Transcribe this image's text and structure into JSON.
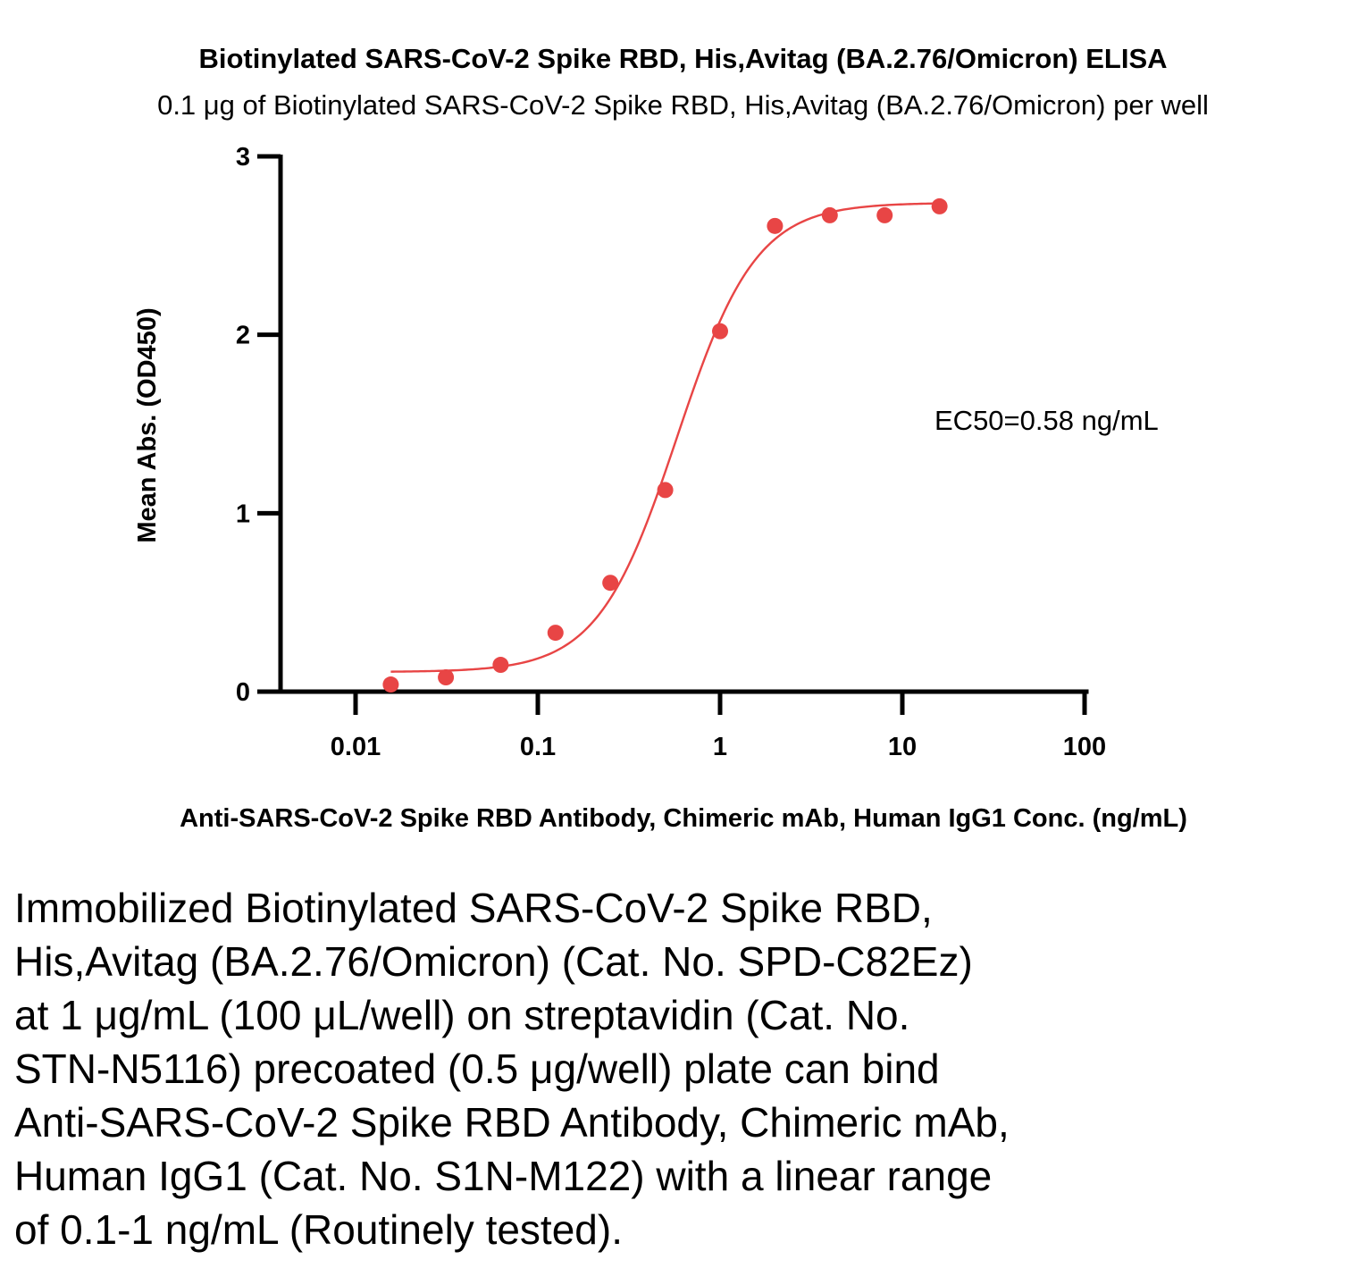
{
  "chart_data": {
    "type": "scatter",
    "title": "Biotinylated SARS-CoV-2 Spike RBD, His,Avitag (BA.2.76/Omicron) ELISA",
    "subtitle": "0.1 μg of Biotinylated SARS-CoV-2 Spike RBD, His,Avitag (BA.2.76/Omicron) per well",
    "xlabel": "Anti-SARS-CoV-2 Spike RBD Antibody, Chimeric mAb, Human IgG1 Conc. (ng/mL)",
    "ylabel": "Mean Abs. (OD450)",
    "xscale": "log",
    "xlim": [
      0.005,
      100
    ],
    "ylim": [
      0,
      3
    ],
    "x_ticks": [
      0.01,
      0.1,
      1,
      10,
      100
    ],
    "x_tick_labels": [
      "0.01",
      "0.1",
      "1",
      "10",
      "100"
    ],
    "y_ticks": [
      0,
      1,
      2,
      3
    ],
    "y_tick_labels": [
      "0",
      "1",
      "2",
      "3"
    ],
    "grid": false,
    "color": "#e84545",
    "points": {
      "x": [
        0.0156,
        0.0313,
        0.0625,
        0.125,
        0.25,
        0.5,
        1,
        2,
        4,
        8,
        16
      ],
      "y": [
        0.04,
        0.08,
        0.15,
        0.33,
        0.61,
        1.13,
        2.02,
        2.61,
        2.67,
        2.67,
        2.72
      ]
    },
    "fit": {
      "model": "4PL",
      "bottom": 0.11,
      "top": 2.74,
      "ec50": 0.58,
      "hill": 2.0,
      "x_range": [
        0.0156,
        16
      ]
    },
    "annotation": "EC50=0.58 ng/mL"
  },
  "caption": "Immobilized Biotinylated SARS-CoV-2 Spike RBD,\nHis,Avitag (BA.2.76/Omicron) (Cat. No. SPD-C82Ez)\nat 1 μg/mL (100 μL/well) on streptavidin (Cat. No.\nSTN-N5116) precoated (0.5 μg/well) plate can bind\nAnti-SARS-CoV-2 Spike RBD Antibody, Chimeric mAb,\nHuman IgG1 (Cat. No. S1N-M122) with a linear range\nof 0.1-1 ng/mL (Routinely tested)."
}
